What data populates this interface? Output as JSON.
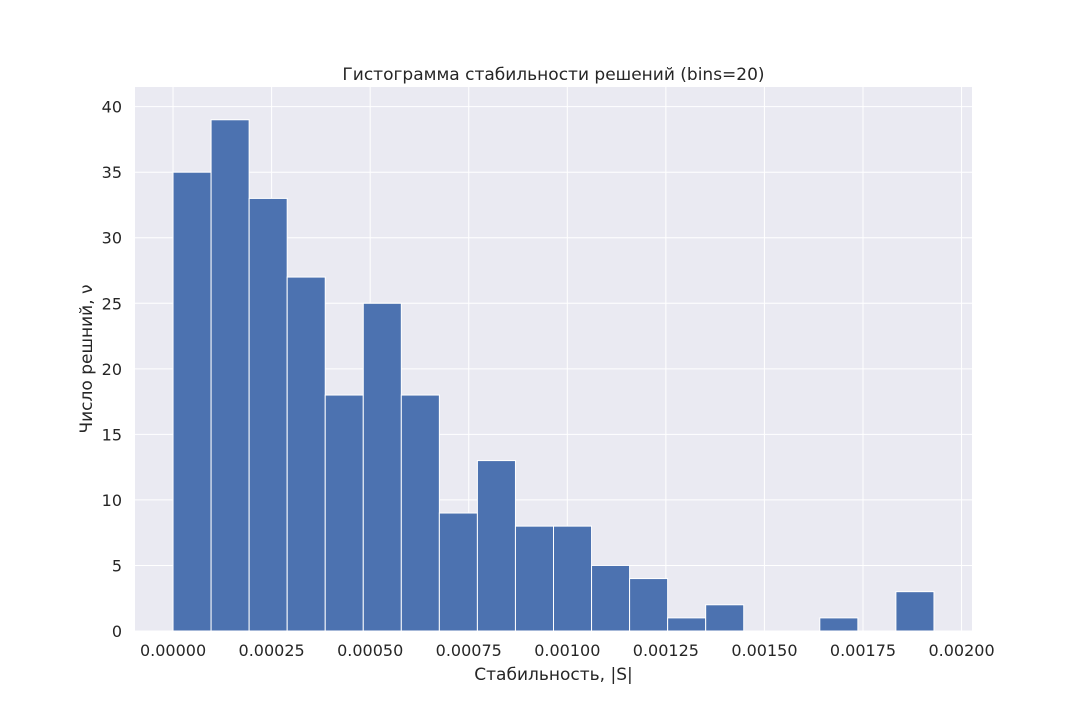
{
  "chart_data": {
    "type": "bar",
    "title": "Гистограмма стабильности решений (bins=20)",
    "xlabel": "Стабильность, |S|",
    "ylabel": "Число решний, ν",
    "bins": 20,
    "bin_start": 0.0,
    "bin_width": 9.65e-05,
    "values": [
      35,
      39,
      33,
      27,
      18,
      25,
      18,
      9,
      13,
      8,
      8,
      5,
      4,
      1,
      2,
      0,
      0,
      1,
      0,
      3
    ],
    "xlim": [
      -9.65e-05,
      0.0020265
    ],
    "ylim": [
      0,
      41.5
    ],
    "x_ticks": [
      0.0,
      0.00025,
      0.0005,
      0.00075,
      0.001,
      0.00125,
      0.0015,
      0.00175,
      0.002
    ],
    "x_tick_labels": [
      "0.00000",
      "0.00025",
      "0.00050",
      "0.00075",
      "0.00100",
      "0.00125",
      "0.00150",
      "0.00175",
      "0.00200"
    ],
    "y_ticks": [
      0,
      5,
      10,
      15,
      20,
      25,
      30,
      35,
      40
    ],
    "y_tick_labels": [
      "0",
      "5",
      "10",
      "15",
      "20",
      "25",
      "30",
      "35",
      "40"
    ],
    "grid": true,
    "colors": {
      "bar": "#4c72b0",
      "background": "#eaeaf2",
      "grid": "#ffffff"
    }
  }
}
